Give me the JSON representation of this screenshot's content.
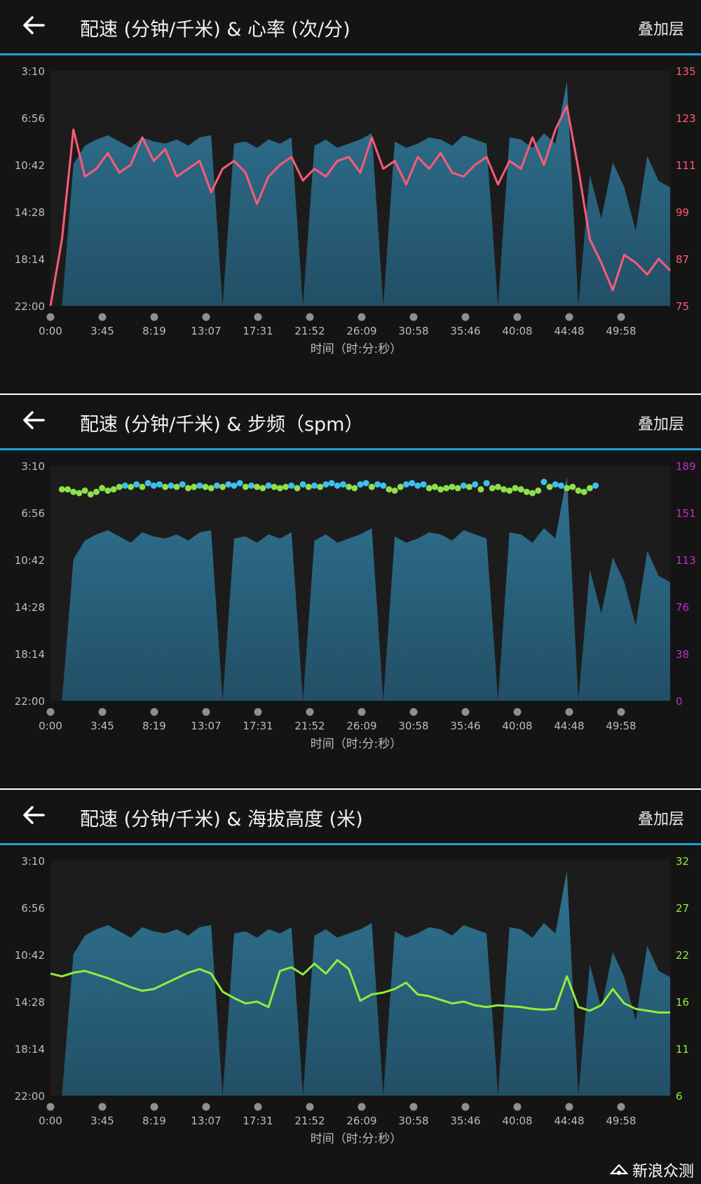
{
  "panels": [
    {
      "title": "配速 (分钟/千米) & 心率 (次/分)",
      "overlay_label": "叠加层",
      "x_axis_title": "时间（时:分:秒）"
    },
    {
      "title": "配速 (分钟/千米) & 步频（spm）",
      "overlay_label": "叠加层",
      "x_axis_title": "时间（时:分:秒）"
    },
    {
      "title": "配速 (分钟/千米) & 海拔高度 (米)",
      "overlay_label": "叠加层",
      "x_axis_title": "时间（时:分:秒）"
    }
  ],
  "watermark": "新浪众测",
  "colors": {
    "header_bg": "#141414",
    "accent_line": "#1ea0d8",
    "pace_area": "#2b6a86",
    "heart_rate": "#ff5a78",
    "cadence_green": "#8ee04a",
    "cadence_blue": "#3cc0ee",
    "cadence_orange": "#ff9a1e",
    "cadence_red": "#ff2050",
    "cadence_purple": "#c02ec8",
    "elevation": "#90ee3c"
  },
  "chart_data": [
    {
      "type": "area",
      "series": [
        {
          "name": "配速",
          "unit": "分钟/千米",
          "x": [
            0,
            1,
            2,
            3,
            4,
            5,
            6,
            7,
            8,
            9,
            10,
            11,
            12,
            13,
            14,
            15,
            16,
            17,
            18,
            19,
            20,
            21,
            22,
            23,
            24,
            25,
            26,
            27,
            28,
            29,
            30,
            31,
            32,
            33,
            34,
            35,
            36,
            37,
            38,
            39,
            40,
            41,
            42,
            43,
            44,
            45,
            46,
            47,
            48,
            49,
            50,
            51,
            52,
            53,
            54
          ],
          "values": [
            "22:00",
            "22:00",
            "10:40",
            "9:10",
            "8:40",
            "8:20",
            "8:50",
            "9:20",
            "8:30",
            "8:50",
            "9:00",
            "8:40",
            "9:10",
            "8:30",
            "8:20",
            "22:00",
            "9:00",
            "8:50",
            "9:20",
            "8:40",
            "9:00",
            "8:30",
            "22:00",
            "9:10",
            "8:40",
            "9:20",
            "9:00",
            "8:40",
            "8:10",
            "22:00",
            "8:50",
            "9:20",
            "9:00",
            "8:30",
            "8:40",
            "9:10",
            "8:20",
            "8:40",
            "9:00",
            "22:00",
            "8:30",
            "8:40",
            "9:20",
            "8:10",
            "9:00",
            "4:00",
            "22:00",
            "11:30",
            "15:00",
            "10:30",
            "12:30",
            "16:00",
            "10:00",
            "12:00",
            "12:30"
          ]
        },
        {
          "name": "心率",
          "unit": "次/分",
          "x": [
            0,
            1,
            2,
            3,
            4,
            5,
            6,
            7,
            8,
            9,
            10,
            11,
            12,
            13,
            14,
            15,
            16,
            17,
            18,
            19,
            20,
            21,
            22,
            23,
            24,
            25,
            26,
            27,
            28,
            29,
            30,
            31,
            32,
            33,
            34,
            35,
            36,
            37,
            38,
            39,
            40,
            41,
            42,
            43,
            44,
            45,
            46,
            47,
            48,
            49,
            50,
            51,
            52,
            53,
            54
          ],
          "values": [
            75,
            92,
            120,
            108,
            110,
            114,
            109,
            111,
            118,
            112,
            115,
            108,
            110,
            112,
            104,
            110,
            112,
            109,
            101,
            108,
            111,
            113,
            107,
            110,
            108,
            112,
            113,
            109,
            118,
            110,
            112,
            106,
            113,
            110,
            114,
            109,
            108,
            111,
            113,
            106,
            112,
            110,
            118,
            111,
            120,
            126,
            110,
            92,
            86,
            79,
            88,
            86,
            83,
            87,
            84
          ]
        }
      ],
      "y_left_ticks": [
        "3:10",
        "6:56",
        "10:42",
        "14:28",
        "18:14",
        "22:00"
      ],
      "y_right_ticks": [
        "135",
        "123",
        "111",
        "99",
        "87",
        "75"
      ],
      "x_ticks": [
        "0:00",
        "3:45",
        "8:19",
        "13:07",
        "17:31",
        "21:52",
        "26:09",
        "30:58",
        "35:46",
        "40:08",
        "44:48",
        "49:58"
      ],
      "ylim_right": [
        75,
        135
      ]
    },
    {
      "type": "scatter",
      "series": [
        {
          "name": "配速",
          "unit": "分钟/千米",
          "x": [
            0,
            1,
            2,
            3,
            4,
            5,
            6,
            7,
            8,
            9,
            10,
            11,
            12,
            13,
            14,
            15,
            16,
            17,
            18,
            19,
            20,
            21,
            22,
            23,
            24,
            25,
            26,
            27,
            28,
            29,
            30,
            31,
            32,
            33,
            34,
            35,
            36,
            37,
            38,
            39,
            40,
            41,
            42,
            43,
            44,
            45,
            46,
            47,
            48,
            49,
            50,
            51,
            52,
            53,
            54
          ],
          "values": [
            "22:00",
            "22:00",
            "10:40",
            "9:10",
            "8:40",
            "8:20",
            "8:50",
            "9:20",
            "8:30",
            "8:50",
            "9:00",
            "8:40",
            "9:10",
            "8:30",
            "8:20",
            "22:00",
            "9:00",
            "8:50",
            "9:20",
            "8:40",
            "9:00",
            "8:30",
            "22:00",
            "9:10",
            "8:40",
            "9:20",
            "9:00",
            "8:40",
            "8:10",
            "22:00",
            "8:50",
            "9:20",
            "9:00",
            "8:30",
            "8:40",
            "9:10",
            "8:20",
            "8:40",
            "9:00",
            "22:00",
            "8:30",
            "8:40",
            "9:20",
            "8:10",
            "9:00",
            "4:00",
            "22:00",
            "11:30",
            "15:00",
            "10:30",
            "12:30",
            "16:00",
            "10:00",
            "12:00",
            "12:30"
          ]
        },
        {
          "name": "步频",
          "unit": "spm",
          "x": [
            1,
            1.5,
            2,
            2.5,
            3,
            3.5,
            4,
            4.5,
            5,
            5.5,
            6,
            6.5,
            7,
            7.5,
            8,
            8.5,
            9,
            9.5,
            10,
            10.5,
            11,
            11.5,
            12,
            12.5,
            13,
            13.5,
            14,
            14.5,
            15,
            15.5,
            16,
            16.5,
            17,
            17.5,
            18,
            18.5,
            19,
            19.5,
            20,
            20.5,
            21,
            21.5,
            22,
            22.5,
            23,
            23.5,
            24,
            24.5,
            25,
            25.5,
            26,
            26.5,
            27,
            27.5,
            28,
            28.5,
            29,
            29.5,
            30,
            30.5,
            31,
            31.5,
            32,
            32.5,
            33,
            33.5,
            34,
            34.5,
            35,
            35.5,
            36,
            36.5,
            37,
            37.5,
            38,
            38.5,
            39,
            39.5,
            40,
            40.5,
            41,
            41.5,
            42,
            42.5,
            43,
            43.5,
            44,
            44.5,
            45,
            45.5,
            46,
            46.5,
            47,
            47.5
          ],
          "values": [
            170,
            170,
            168,
            167,
            169,
            166,
            168,
            171,
            169,
            170,
            172,
            173,
            172,
            174,
            172,
            175,
            173,
            174,
            172,
            173,
            172,
            174,
            171,
            172,
            173,
            172,
            171,
            173,
            172,
            174,
            173,
            175,
            172,
            173,
            172,
            171,
            173,
            172,
            171,
            172,
            173,
            171,
            174,
            172,
            173,
            172,
            174,
            175,
            173,
            174,
            172,
            171,
            174,
            175,
            172,
            174,
            173,
            170,
            169,
            172,
            174,
            175,
            173,
            174,
            171,
            172,
            170,
            171,
            172,
            171,
            173,
            172,
            174,
            170,
            175,
            171,
            172,
            170,
            169,
            171,
            170,
            168,
            167,
            169,
            176,
            172,
            174,
            173,
            171,
            172,
            169,
            168,
            171,
            173
          ]
        }
      ],
      "y_left_ticks": [
        "3:10",
        "6:56",
        "10:42",
        "14:28",
        "18:14",
        "22:00"
      ],
      "y_right_ticks": [
        "189",
        "151",
        "113",
        "76",
        "38",
        "0"
      ],
      "x_ticks": [
        "0:00",
        "3:45",
        "8:19",
        "13:07",
        "17:31",
        "21:52",
        "26:09",
        "30:58",
        "35:46",
        "40:08",
        "44:48",
        "49:58"
      ],
      "ylim_right": [
        0,
        189
      ]
    },
    {
      "type": "area",
      "series": [
        {
          "name": "配速",
          "unit": "分钟/千米",
          "x": [
            0,
            1,
            2,
            3,
            4,
            5,
            6,
            7,
            8,
            9,
            10,
            11,
            12,
            13,
            14,
            15,
            16,
            17,
            18,
            19,
            20,
            21,
            22,
            23,
            24,
            25,
            26,
            27,
            28,
            29,
            30,
            31,
            32,
            33,
            34,
            35,
            36,
            37,
            38,
            39,
            40,
            41,
            42,
            43,
            44,
            45,
            46,
            47,
            48,
            49,
            50,
            51,
            52,
            53,
            54
          ],
          "values": [
            "22:00",
            "22:00",
            "10:40",
            "9:10",
            "8:40",
            "8:20",
            "8:50",
            "9:20",
            "8:30",
            "8:50",
            "9:00",
            "8:40",
            "9:10",
            "8:30",
            "8:20",
            "22:00",
            "9:00",
            "8:50",
            "9:20",
            "8:40",
            "9:00",
            "8:30",
            "22:00",
            "9:10",
            "8:40",
            "9:20",
            "9:00",
            "8:40",
            "8:10",
            "22:00",
            "8:50",
            "9:20",
            "9:00",
            "8:30",
            "8:40",
            "9:10",
            "8:20",
            "8:40",
            "9:00",
            "22:00",
            "8:30",
            "8:40",
            "9:20",
            "8:10",
            "9:00",
            "4:00",
            "22:00",
            "11:30",
            "15:00",
            "10:30",
            "12:30",
            "16:00",
            "10:00",
            "12:00",
            "12:30"
          ]
        },
        {
          "name": "海拔高度",
          "unit": "米",
          "x": [
            0,
            1,
            2,
            3,
            4,
            5,
            6,
            7,
            8,
            9,
            10,
            11,
            12,
            13,
            14,
            15,
            16,
            17,
            18,
            19,
            20,
            21,
            22,
            23,
            24,
            25,
            26,
            27,
            28,
            29,
            30,
            31,
            32,
            33,
            34,
            35,
            36,
            37,
            38,
            39,
            40,
            41,
            42,
            43,
            44,
            45,
            46,
            47,
            48,
            49,
            50,
            51,
            52,
            53,
            54
          ],
          "values": [
            19.5,
            19.2,
            19.6,
            19.8,
            19.4,
            19.0,
            18.5,
            18.0,
            17.6,
            17.8,
            18.4,
            19.0,
            19.6,
            20.0,
            19.5,
            17.5,
            16.8,
            16.2,
            16.4,
            15.8,
            19.8,
            20.2,
            19.4,
            20.6,
            19.5,
            21.0,
            20.0,
            16.5,
            17.2,
            17.4,
            17.8,
            18.5,
            17.2,
            17.0,
            16.6,
            16.2,
            16.4,
            16.0,
            15.8,
            16.0,
            15.9,
            15.8,
            15.6,
            15.5,
            15.6,
            19.2,
            15.8,
            15.4,
            16.0,
            17.8,
            16.2,
            15.6,
            15.4,
            15.2,
            15.2
          ]
        }
      ],
      "y_left_ticks": [
        "3:10",
        "6:56",
        "10:42",
        "14:28",
        "18:14",
        "22:00"
      ],
      "y_right_ticks": [
        "32",
        "27",
        "22",
        "16",
        "11",
        "6"
      ],
      "x_ticks": [
        "0:00",
        "3:45",
        "8:19",
        "13:07",
        "17:31",
        "21:52",
        "26:09",
        "30:58",
        "35:46",
        "40:08",
        "44:48",
        "49:58"
      ],
      "ylim_right": [
        6,
        32
      ]
    }
  ]
}
